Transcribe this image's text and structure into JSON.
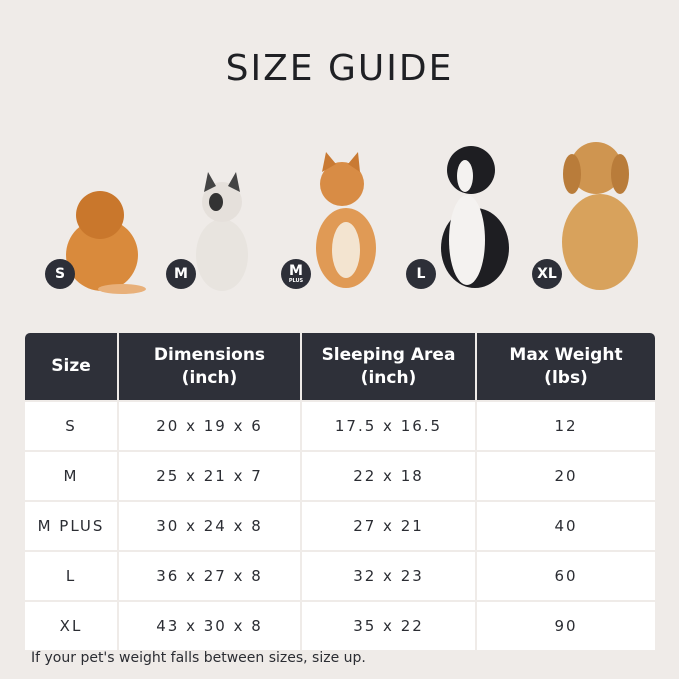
{
  "title": "SIZE GUIDE",
  "dogs": [
    {
      "size": "S",
      "color": "#d98a3c"
    },
    {
      "size": "M",
      "sub": "",
      "color": "#e8e4df"
    },
    {
      "size": "M",
      "sub": "PLUS",
      "color": "#e09a55"
    },
    {
      "size": "L",
      "color": "#1e1e22"
    },
    {
      "size": "XL",
      "color": "#d8a25c"
    }
  ],
  "table": {
    "headers": [
      {
        "line1": "Size",
        "line2": ""
      },
      {
        "line1": "Dimensions",
        "line2": "(inch)"
      },
      {
        "line1": "Sleeping Area",
        "line2": "(inch)"
      },
      {
        "line1": "Max Weight",
        "line2": "(lbs)"
      }
    ],
    "rows": [
      [
        "S",
        "20 x 19 x 6",
        "17.5 x 16.5",
        "12"
      ],
      [
        "M",
        "25 x 21 x 7",
        "22 x 18",
        "20"
      ],
      [
        "M PLUS",
        "30 x 24 x 8",
        "27 x 21",
        "40"
      ],
      [
        "L",
        "36 x 27 x 8",
        "32 x 23",
        "60"
      ],
      [
        "XL",
        "43 x 30 x 8",
        "35 x 22",
        "90"
      ]
    ]
  },
  "note": "If your pet's weight falls between sizes, size up."
}
